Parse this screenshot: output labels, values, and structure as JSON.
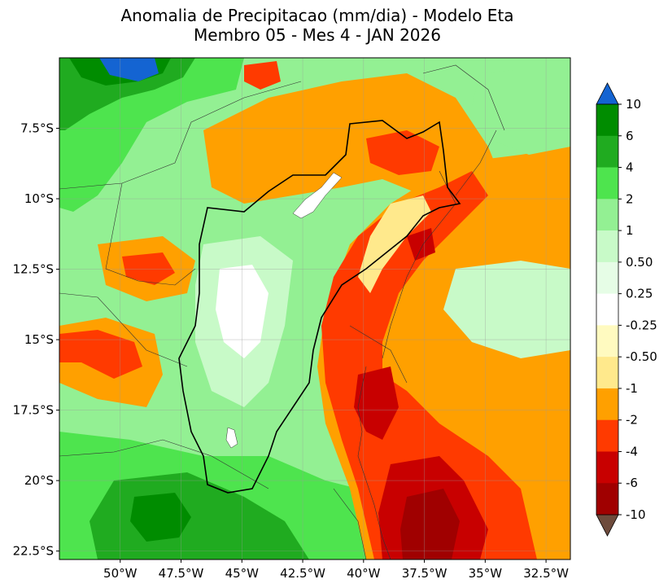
{
  "title": {
    "line1": "Anomalia de Precipitacao (mm/dia) - Modelo Eta",
    "line2": "Membro 05 - Mes 4 - JAN 2026"
  },
  "map": {
    "lon_range": [
      -52.5,
      -31.5
    ],
    "lat_range": [
      -22.8,
      -5.0
    ],
    "lat_ticks": [
      {
        "value": -7.5,
        "label": "7.5°S"
      },
      {
        "value": -10,
        "label": "10°S"
      },
      {
        "value": -12.5,
        "label": "12.5°S"
      },
      {
        "value": -15,
        "label": "15°S"
      },
      {
        "value": -17.5,
        "label": "17.5°S"
      },
      {
        "value": -20,
        "label": "20°S"
      },
      {
        "value": -22.5,
        "label": "22.5°S"
      }
    ],
    "lon_ticks": [
      {
        "value": -50,
        "label": "50°W"
      },
      {
        "value": -47.5,
        "label": "47.5°W"
      },
      {
        "value": -45,
        "label": "45°W"
      },
      {
        "value": -42.5,
        "label": "42.5°W"
      },
      {
        "value": -40,
        "label": "40°W"
      },
      {
        "value": -37.5,
        "label": "37.5°W"
      },
      {
        "value": -35,
        "label": "35°W"
      },
      {
        "value": -32.5,
        "label": "32.5°W"
      }
    ],
    "gridlines": true
  },
  "colorbar": {
    "levels": [
      "10",
      "6",
      "4",
      "2",
      "1",
      "0.50",
      "0.25",
      "-0.25",
      "-0.50",
      "-1",
      "-2",
      "-4",
      "-6",
      "-10"
    ],
    "colors": [
      "#008c00",
      "#20ab20",
      "#4ee44e",
      "#93f093",
      "#c8fac8",
      "#e6fde6",
      "#ffffff",
      "#fffac0",
      "#ffe98c",
      "#ffa000",
      "#ff3a00",
      "#c80000",
      "#a00000"
    ],
    "top_extend_color": "#1464d2",
    "bottom_extend_color": "#6e4b3c"
  }
}
